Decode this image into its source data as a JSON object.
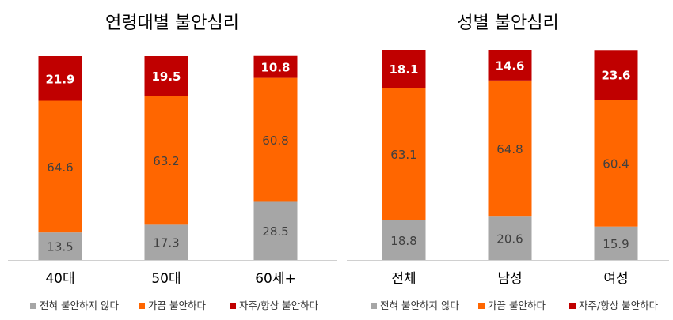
{
  "chart_data": [
    {
      "type": "bar",
      "stacked": true,
      "title": "연령대별 불안심리",
      "categories": [
        "40대",
        "50대",
        "60세+"
      ],
      "series": [
        {
          "name": "전혀 불안하지 않다",
          "color": "#a6a6a6",
          "values": [
            13.5,
            17.3,
            28.5
          ]
        },
        {
          "name": "가끔 불안하다",
          "color": "#ff6600",
          "values": [
            64.6,
            63.2,
            60.8
          ]
        },
        {
          "name": "자주/항상 불안하다",
          "color": "#c00000",
          "values": [
            21.9,
            19.5,
            10.8
          ]
        }
      ],
      "ylim": [
        0,
        100
      ],
      "grid": false,
      "legend": "bottom"
    },
    {
      "type": "bar",
      "stacked": true,
      "title": "성별 불안심리",
      "categories": [
        "전체",
        "남성",
        "여성"
      ],
      "series": [
        {
          "name": "전혀 불안하지 않다",
          "color": "#a6a6a6",
          "values": [
            18.8,
            20.6,
            15.9
          ]
        },
        {
          "name": "가끔 불안하다",
          "color": "#ff6600",
          "values": [
            63.1,
            64.8,
            60.4
          ]
        },
        {
          "name": "자주/항상 불안하다",
          "color": "#c00000",
          "values": [
            18.1,
            14.6,
            23.6
          ]
        }
      ],
      "ylim": [
        0,
        100
      ],
      "grid": false,
      "legend": "bottom"
    }
  ]
}
